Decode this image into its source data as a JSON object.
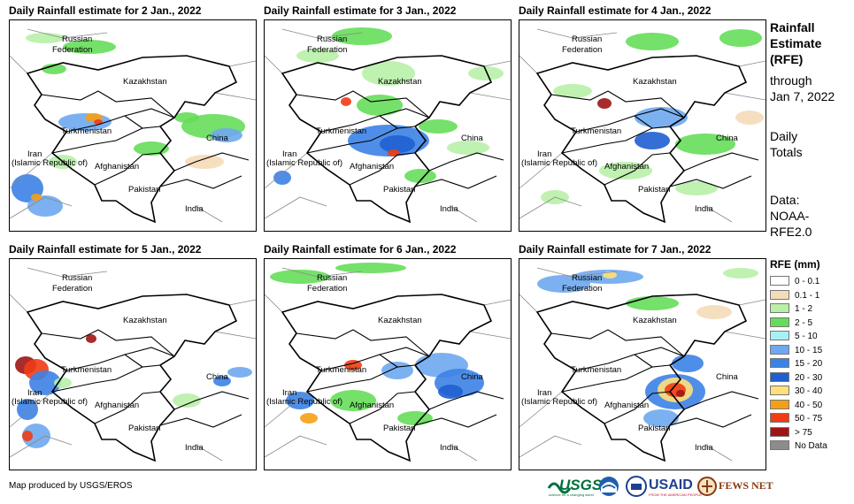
{
  "panels": [
    {
      "title": "Daily Rainfall estimate for 2 Jan., 2022",
      "day": "2"
    },
    {
      "title": "Daily Rainfall estimate for 3 Jan., 2022",
      "day": "3"
    },
    {
      "title": "Daily Rainfall estimate for 4 Jan., 2022",
      "day": "4"
    },
    {
      "title": "Daily Rainfall estimate for 5 Jan., 2022",
      "day": "5"
    },
    {
      "title": "Daily Rainfall estimate for 6 Jan., 2022",
      "day": "6"
    },
    {
      "title": "Daily Rainfall estimate for 7 Jan., 2022",
      "day": "7"
    }
  ],
  "map_labels": {
    "russia_1": "Russian",
    "russia_2": "Federation",
    "kazakhstan": "Kazakhstan",
    "turkmenistan": "Turkmenistan",
    "iran_1": "Iran",
    "iran_2": "(Islamic Republic of)",
    "afghanistan": "Afghanistan",
    "pakistan": "Pakistan",
    "china": "China",
    "india": "India"
  },
  "side": {
    "title_1": "Rainfall",
    "title_2": "Estimate",
    "title_3": "(RFE)",
    "through": "through",
    "date": "Jan 7, 2022",
    "daily_1": "Daily",
    "daily_2": "Totals",
    "data_1": "Data:",
    "data_2": "NOAA-",
    "data_3": "RFE2.0"
  },
  "legend": {
    "title": "RFE (mm)",
    "items": [
      {
        "label": "0 - 0.1",
        "color": "#ffffff"
      },
      {
        "label": "0.1 - 1",
        "color": "#f5dcb8"
      },
      {
        "label": "1 - 2",
        "color": "#b8f0a8"
      },
      {
        "label": "2 - 5",
        "color": "#66dd5a"
      },
      {
        "label": "5 - 10",
        "color": "#a8f0f5"
      },
      {
        "label": "10 - 15",
        "color": "#6ea8f0"
      },
      {
        "label": "15 - 20",
        "color": "#3c82e6"
      },
      {
        "label": "20 - 30",
        "color": "#1f5fd0"
      },
      {
        "label": "30 - 40",
        "color": "#ffe07a"
      },
      {
        "label": "40 - 50",
        "color": "#f5a014"
      },
      {
        "label": "50 - 75",
        "color": "#f03c14"
      },
      {
        "label": "> 75",
        "color": "#a01414"
      },
      {
        "label": "No Data",
        "color": "#8c8c8c"
      }
    ]
  },
  "footer": "Map produced by USGS/EROS",
  "logos": {
    "usgs": "USGS",
    "usgs_tag": "science for a changing world",
    "usaid": "USAID",
    "usaid_tag": "FROM THE AMERICAN PEOPLE",
    "fews": "FEWS NET"
  }
}
